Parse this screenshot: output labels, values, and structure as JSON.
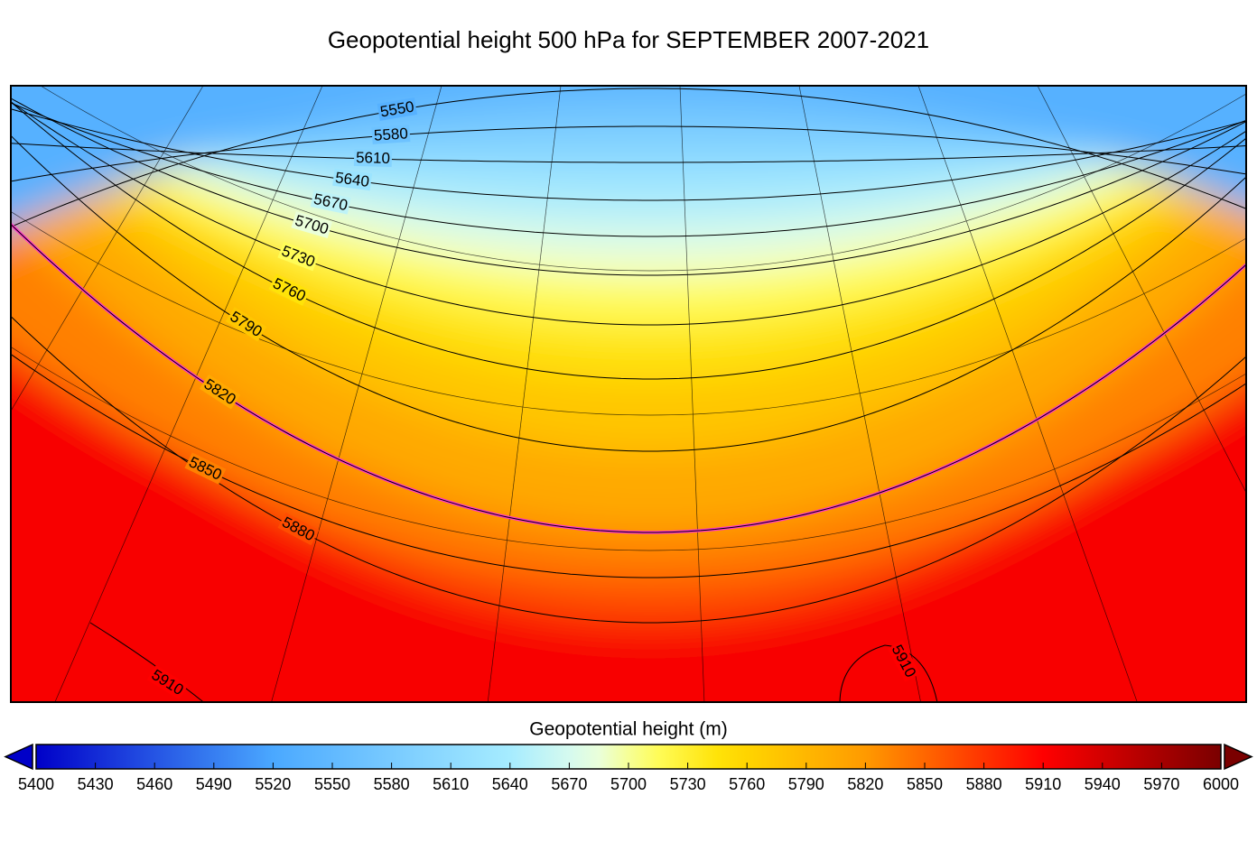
{
  "title": "Geopotential height 500 hPa for SEPTEMBER 2007-2021",
  "contour_labels": [
    5550,
    5580,
    5610,
    5640,
    5670,
    5700,
    5730,
    5760,
    5790,
    5820,
    5850,
    5880,
    5910,
    5910
  ],
  "highlight_contour": {
    "value": 5820,
    "color": "#ff33cc"
  },
  "colorbar": {
    "label": "Geopotential height (m)",
    "lim": [
      5400,
      6000
    ],
    "ticks": [
      5400,
      5430,
      5460,
      5490,
      5520,
      5550,
      5580,
      5610,
      5640,
      5670,
      5700,
      5730,
      5760,
      5790,
      5820,
      5850,
      5880,
      5910,
      5940,
      5970,
      6000
    ]
  }
}
